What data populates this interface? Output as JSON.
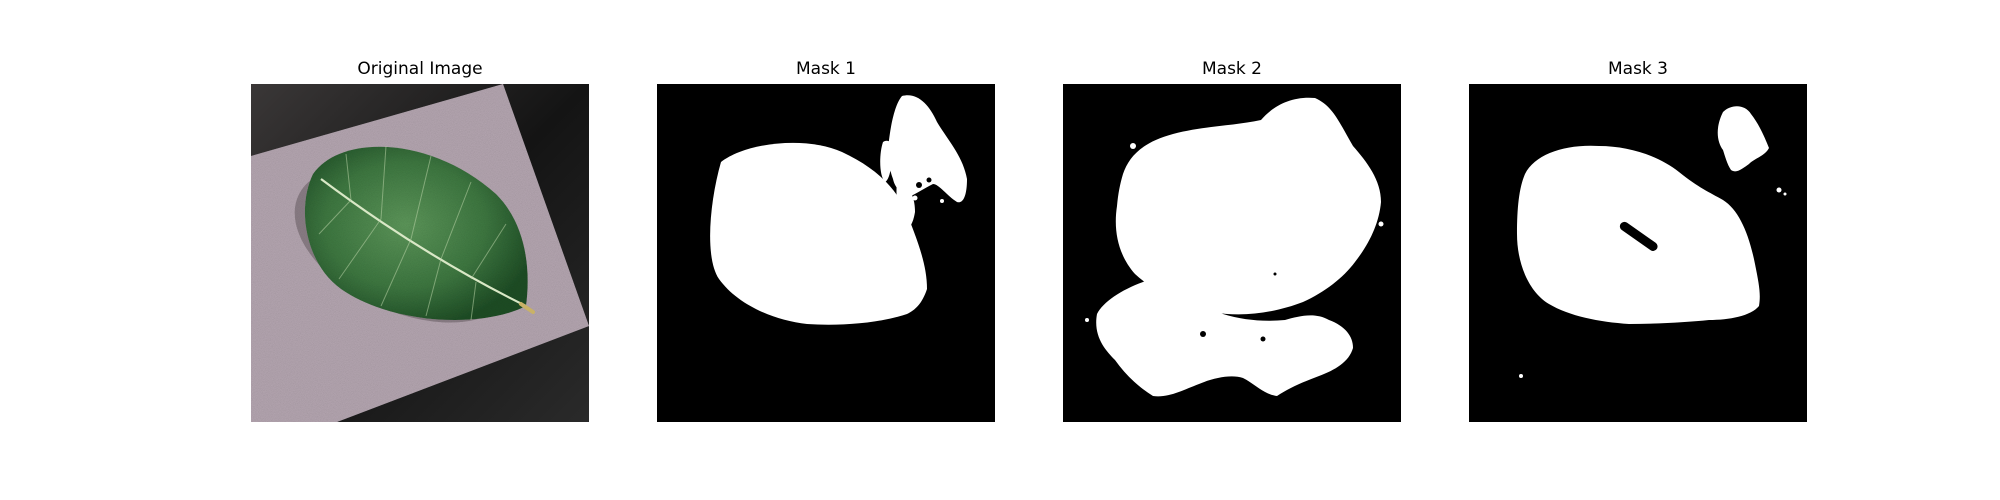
{
  "panels": [
    {
      "title": "Original Image"
    },
    {
      "title": "Mask 1"
    },
    {
      "title": "Mask 2"
    },
    {
      "title": "Mask 3"
    }
  ]
}
